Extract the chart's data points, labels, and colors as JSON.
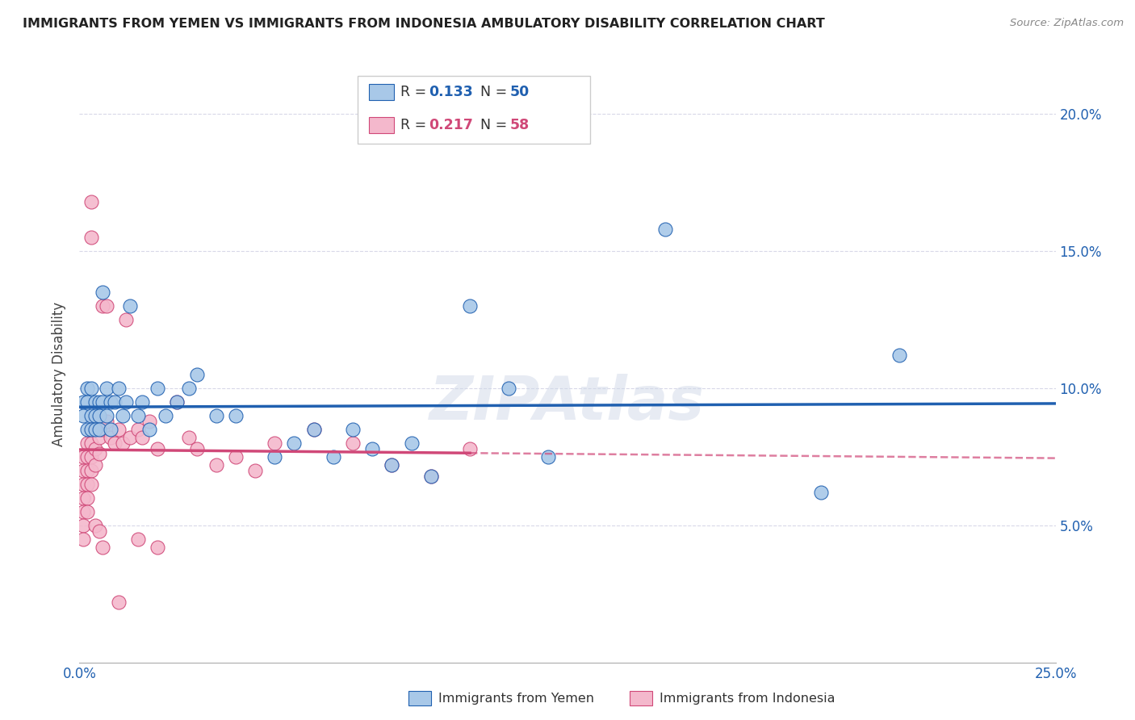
{
  "title": "IMMIGRANTS FROM YEMEN VS IMMIGRANTS FROM INDONESIA AMBULATORY DISABILITY CORRELATION CHART",
  "source": "Source: ZipAtlas.com",
  "ylabel": "Ambulatory Disability",
  "xlim": [
    0.0,
    0.25
  ],
  "ylim": [
    0.0,
    0.21
  ],
  "color_yemen": "#a8c8e8",
  "color_indonesia": "#f4b8cc",
  "trend_color_yemen": "#2060b0",
  "trend_color_indonesia": "#d04878",
  "background_color": "#ffffff",
  "grid_color": "#d8d8e8",
  "legend_r1": "0.133",
  "legend_n1": "50",
  "legend_r2": "0.217",
  "legend_n2": "58",
  "yemen_x": [
    0.001,
    0.001,
    0.002,
    0.002,
    0.002,
    0.003,
    0.003,
    0.003,
    0.004,
    0.004,
    0.004,
    0.005,
    0.005,
    0.005,
    0.006,
    0.006,
    0.007,
    0.007,
    0.008,
    0.008,
    0.009,
    0.01,
    0.011,
    0.012,
    0.013,
    0.015,
    0.016,
    0.018,
    0.02,
    0.022,
    0.025,
    0.028,
    0.03,
    0.035,
    0.04,
    0.05,
    0.055,
    0.06,
    0.065,
    0.07,
    0.075,
    0.08,
    0.085,
    0.09,
    0.1,
    0.11,
    0.12,
    0.15,
    0.19,
    0.21
  ],
  "yemen_y": [
    0.095,
    0.09,
    0.1,
    0.095,
    0.085,
    0.1,
    0.09,
    0.085,
    0.095,
    0.09,
    0.085,
    0.095,
    0.09,
    0.085,
    0.135,
    0.095,
    0.1,
    0.09,
    0.095,
    0.085,
    0.095,
    0.1,
    0.09,
    0.095,
    0.13,
    0.09,
    0.095,
    0.085,
    0.1,
    0.09,
    0.095,
    0.1,
    0.105,
    0.09,
    0.09,
    0.075,
    0.08,
    0.085,
    0.075,
    0.085,
    0.078,
    0.072,
    0.08,
    0.068,
    0.13,
    0.1,
    0.075,
    0.158,
    0.062,
    0.112
  ],
  "indonesia_x": [
    0.001,
    0.001,
    0.001,
    0.001,
    0.001,
    0.001,
    0.001,
    0.002,
    0.002,
    0.002,
    0.002,
    0.002,
    0.002,
    0.003,
    0.003,
    0.003,
    0.003,
    0.003,
    0.004,
    0.004,
    0.004,
    0.005,
    0.005,
    0.005,
    0.006,
    0.006,
    0.007,
    0.007,
    0.008,
    0.009,
    0.01,
    0.011,
    0.012,
    0.013,
    0.015,
    0.016,
    0.018,
    0.02,
    0.025,
    0.028,
    0.03,
    0.035,
    0.04,
    0.045,
    0.05,
    0.06,
    0.07,
    0.08,
    0.09,
    0.1,
    0.003,
    0.003,
    0.004,
    0.005,
    0.006,
    0.01,
    0.015,
    0.02
  ],
  "indonesia_y": [
    0.075,
    0.07,
    0.065,
    0.06,
    0.055,
    0.05,
    0.045,
    0.08,
    0.075,
    0.07,
    0.065,
    0.06,
    0.055,
    0.085,
    0.08,
    0.075,
    0.07,
    0.065,
    0.085,
    0.078,
    0.072,
    0.088,
    0.082,
    0.076,
    0.13,
    0.085,
    0.13,
    0.088,
    0.082,
    0.08,
    0.085,
    0.08,
    0.125,
    0.082,
    0.085,
    0.082,
    0.088,
    0.078,
    0.095,
    0.082,
    0.078,
    0.072,
    0.075,
    0.07,
    0.08,
    0.085,
    0.08,
    0.072,
    0.068,
    0.078,
    0.168,
    0.155,
    0.05,
    0.048,
    0.042,
    0.022,
    0.045,
    0.042
  ]
}
